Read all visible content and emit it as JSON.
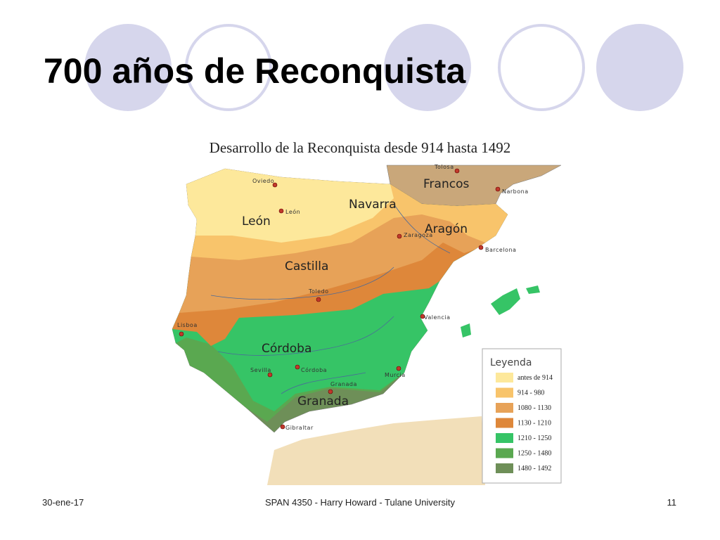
{
  "slide": {
    "title": "700 años de Reconquista"
  },
  "map": {
    "title": "Desarrollo de la Reconquista desde 914 hasta 1492",
    "regions": [
      "Francos",
      "Navarra",
      "León",
      "Aragón",
      "Castilla",
      "Córdoba",
      "Granada"
    ],
    "cities": [
      "Tolosa",
      "Narbona",
      "Oviedo",
      "León",
      "Zaragoza",
      "Barcelona",
      "Toledo",
      "Valencia",
      "Lisboa",
      "Sevilla",
      "Córdoba",
      "Murcia",
      "Granada",
      "Gibraltar"
    ],
    "legend": {
      "title": "Leyenda",
      "items": [
        {
          "label": "antes de 914",
          "color": "#fde89b"
        },
        {
          "label": "914 - 980",
          "color": "#f8c46b"
        },
        {
          "label": "1080 - 1130",
          "color": "#e7a258"
        },
        {
          "label": "1130 - 1210",
          "color": "#de873a"
        },
        {
          "label": "1210 - 1250",
          "color": "#36c466"
        },
        {
          "label": "1250 - 1480",
          "color": "#5aa850"
        },
        {
          "label": "1480 - 1492",
          "color": "#6e8f58"
        }
      ]
    }
  },
  "footer": {
    "date": "30-ene-17",
    "center": "SPAN 4350 - Harry Howard - Tulane University",
    "page": "11"
  }
}
